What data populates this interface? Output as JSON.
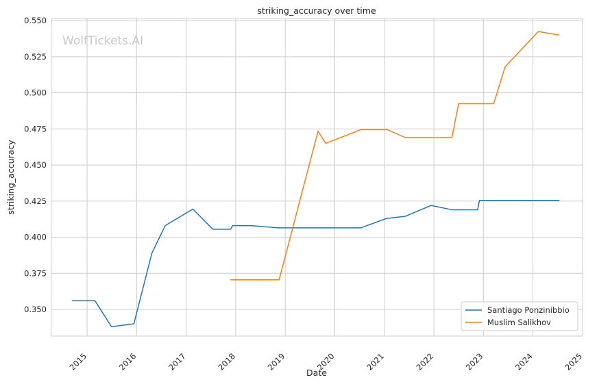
{
  "chart_data": {
    "type": "line",
    "title": "striking_accuracy over time",
    "xlabel": "Date",
    "ylabel": "striking_accuracy",
    "watermark": "WolfTickets.AI",
    "xlim": [
      "2014-04-13",
      "2025-01-01"
    ],
    "ylim": [
      0.3315,
      0.5515
    ],
    "x_ticks": [
      "2015",
      "2016",
      "2017",
      "2018",
      "2019",
      "2020",
      "2021",
      "2022",
      "2023",
      "2024",
      "2025"
    ],
    "y_ticks": [
      "0.350",
      "0.375",
      "0.400",
      "0.425",
      "0.450",
      "0.475",
      "0.500",
      "0.525",
      "0.550"
    ],
    "grid": true,
    "legend_position": "lower-right",
    "series": [
      {
        "name": "Santiago Ponzinibbio",
        "color": "#1f77b4",
        "points": [
          [
            "2014-09-13",
            0.356
          ],
          [
            "2015-02-28",
            0.356
          ],
          [
            "2015-06-30",
            0.338
          ],
          [
            "2015-12-12",
            0.34
          ],
          [
            "2016-04-23",
            0.389
          ],
          [
            "2016-07-30",
            0.408
          ],
          [
            "2017-02-19",
            0.4195
          ],
          [
            "2017-07-16",
            0.4055
          ],
          [
            "2017-11-25",
            0.4055
          ],
          [
            "2017-12-09",
            0.408
          ],
          [
            "2018-04-21",
            0.408
          ],
          [
            "2018-11-17",
            0.4065
          ],
          [
            "2020-07-12",
            0.4065
          ],
          [
            "2021-01-17",
            0.413
          ],
          [
            "2021-06-05",
            0.4145
          ],
          [
            "2021-12-11",
            0.422
          ],
          [
            "2022-05-14",
            0.419
          ],
          [
            "2022-11-19",
            0.419
          ],
          [
            "2022-12-03",
            0.4255
          ],
          [
            "2024-07-13",
            0.4255
          ]
        ]
      },
      {
        "name": "Muslim Salikhov",
        "color": "#ff7f0e",
        "points": [
          [
            "2017-11-25",
            0.3705
          ],
          [
            "2018-11-17",
            0.3705
          ],
          [
            "2019-08-31",
            0.4735
          ],
          [
            "2019-10-26",
            0.465
          ],
          [
            "2020-07-12",
            0.4745
          ],
          [
            "2021-01-24",
            0.4745
          ],
          [
            "2021-06-05",
            0.469
          ],
          [
            "2022-05-14",
            0.469
          ],
          [
            "2022-07-02",
            0.4925
          ],
          [
            "2023-03-18",
            0.4925
          ],
          [
            "2023-06-10",
            0.518
          ],
          [
            "2024-02-10",
            0.5425
          ],
          [
            "2024-07-13",
            0.54
          ]
        ]
      }
    ]
  }
}
